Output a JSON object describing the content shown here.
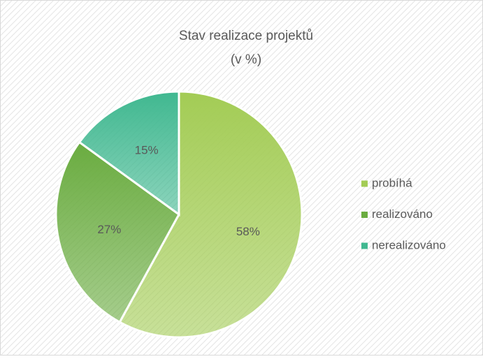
{
  "chart_data": {
    "type": "pie",
    "title": "Stav realizace projektů",
    "subtitle": "(v %)",
    "categories": [
      "probíhá",
      "realizováno",
      "nerealizováno"
    ],
    "values": [
      58,
      27,
      15
    ],
    "value_labels": [
      "58%",
      "27%",
      "15%"
    ],
    "colors": [
      "#a3cc55",
      "#6aac40",
      "#40b890"
    ],
    "legend": "right"
  }
}
